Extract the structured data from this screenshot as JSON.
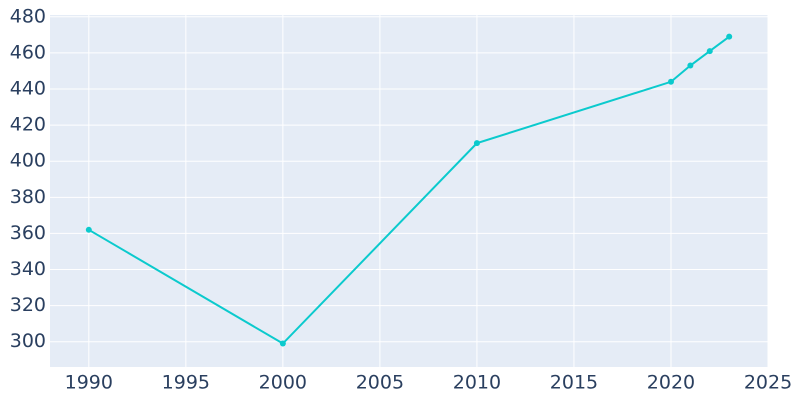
{
  "chart_data": {
    "type": "line",
    "x": [
      1990,
      2000,
      2010,
      2020,
      2021,
      2022,
      2023
    ],
    "series": [
      {
        "color": "#0bcacd",
        "values": [
          362,
          299,
          410,
          444,
          453,
          461,
          469
        ]
      }
    ],
    "xlim": [
      1988,
      2025
    ],
    "xticks": [
      1990,
      1995,
      2000,
      2005,
      2010,
      2015,
      2020,
      2025
    ],
    "ylim": [
      286,
      481
    ],
    "yticks": [
      300,
      320,
      340,
      360,
      380,
      400,
      420,
      440,
      460,
      480
    ],
    "grid": true,
    "background": "#e5ecf6"
  }
}
